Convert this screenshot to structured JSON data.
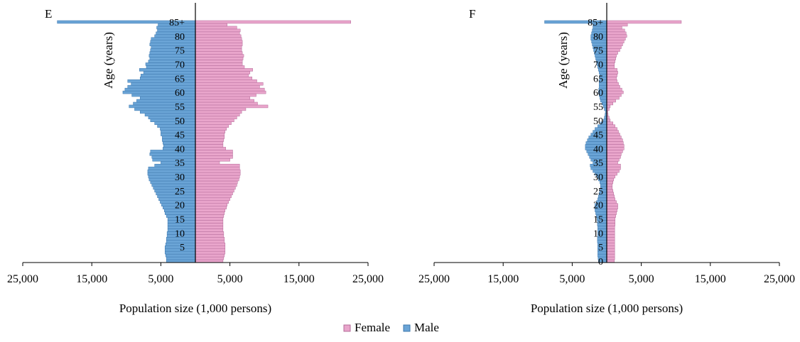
{
  "chart_data": [
    {
      "type": "bar",
      "orientation": "horizontal",
      "subtype": "population-pyramid",
      "panel_label": "E",
      "xlabel": "Population size (1,000 persons)",
      "ylabel": "Age (years)",
      "x_tick_labels": [
        "25,000",
        "15,000",
        "5,000",
        "5,000",
        "15,000",
        "25,000"
      ],
      "x_ticks": [
        -25000,
        -15000,
        -5000,
        5000,
        15000,
        25000
      ],
      "xlim": [
        -25000,
        25000
      ],
      "age_tick_labels": [
        "5",
        "10",
        "15",
        "20",
        "25",
        "30",
        "35",
        "40",
        "45",
        "50",
        "55",
        "60",
        "65",
        "70",
        "75",
        "80",
        "85+"
      ],
      "categories": [
        "0",
        "1",
        "2",
        "3",
        "4",
        "5",
        "6",
        "7",
        "8",
        "9",
        "10",
        "11",
        "12",
        "13",
        "14",
        "15",
        "16",
        "17",
        "18",
        "19",
        "20",
        "21",
        "22",
        "23",
        "24",
        "25",
        "26",
        "27",
        "28",
        "29",
        "30",
        "31",
        "32",
        "33",
        "34",
        "35",
        "36",
        "37",
        "38",
        "39",
        "40",
        "41",
        "42",
        "43",
        "44",
        "45",
        "46",
        "47",
        "48",
        "49",
        "50",
        "51",
        "52",
        "53",
        "54",
        "55",
        "56",
        "57",
        "58",
        "59",
        "60",
        "61",
        "62",
        "63",
        "64",
        "65",
        "66",
        "67",
        "68",
        "69",
        "70",
        "71",
        "72",
        "73",
        "74",
        "75",
        "76",
        "77",
        "78",
        "79",
        "80",
        "81",
        "82",
        "83",
        "84",
        "85+"
      ],
      "series": [
        {
          "name": "Female",
          "values": [
            4000,
            4100,
            4200,
            4300,
            4300,
            4300,
            4300,
            4200,
            4200,
            4100,
            4100,
            4000,
            4000,
            4000,
            4000,
            4000,
            4100,
            4200,
            4300,
            4500,
            4600,
            4800,
            5000,
            5200,
            5400,
            5600,
            5800,
            6000,
            6100,
            6300,
            6400,
            6500,
            6500,
            6400,
            6400,
            3500,
            5000,
            5400,
            5400,
            5400,
            4400,
            4000,
            4000,
            4100,
            4200,
            4200,
            4300,
            4500,
            4800,
            5200,
            5600,
            6000,
            6400,
            6700,
            7300,
            10500,
            9000,
            8500,
            7900,
            8800,
            10200,
            10000,
            9300,
            9800,
            8900,
            8200,
            7700,
            7900,
            8300,
            7100,
            6800,
            6800,
            6900,
            7000,
            6800,
            6700,
            6700,
            6800,
            6800,
            6700,
            6600,
            6400,
            6500,
            6000,
            4600,
            22500
          ],
          "color": "#e9a5cb"
        },
        {
          "name": "Male",
          "values": [
            4200,
            4200,
            4300,
            4400,
            4400,
            4400,
            4300,
            4200,
            4200,
            4100,
            4100,
            4000,
            4000,
            4000,
            4000,
            4000,
            4200,
            4400,
            4500,
            4700,
            4900,
            5100,
            5300,
            5500,
            5700,
            5900,
            6100,
            6300,
            6500,
            6700,
            6800,
            6900,
            6900,
            6800,
            5900,
            5000,
            6200,
            6300,
            6600,
            6500,
            4700,
            4600,
            4700,
            4800,
            4800,
            5000,
            5000,
            5100,
            5500,
            5900,
            6500,
            6800,
            7300,
            8000,
            8800,
            9600,
            9000,
            8500,
            8000,
            9200,
            10500,
            10200,
            9800,
            9300,
            9800,
            8000,
            7900,
            7500,
            8100,
            7100,
            7200,
            6800,
            6600,
            6700,
            6600,
            6500,
            6400,
            6600,
            6500,
            6400,
            5900,
            5700,
            5500,
            5600,
            5400,
            20000
          ],
          "color": "#6aa4d6"
        }
      ]
    },
    {
      "type": "bar",
      "orientation": "horizontal",
      "subtype": "population-pyramid",
      "panel_label": "F",
      "xlabel": "Population size (1,000 persons)",
      "ylabel": "Age (years)",
      "x_tick_labels": [
        "25,000",
        "15,000",
        "5,000",
        "5,000",
        "15,000",
        "25,000"
      ],
      "x_ticks": [
        -25000,
        -15000,
        -5000,
        5000,
        15000,
        25000
      ],
      "xlim": [
        -25000,
        25000
      ],
      "age_tick_labels": [
        "0",
        "5",
        "10",
        "15",
        "20",
        "25",
        "30",
        "35",
        "40",
        "45",
        "50",
        "55",
        "60",
        "65",
        "70",
        "75",
        "80",
        "85+"
      ],
      "categories": [
        "0",
        "1",
        "2",
        "3",
        "4",
        "5",
        "6",
        "7",
        "8",
        "9",
        "10",
        "11",
        "12",
        "13",
        "14",
        "15",
        "16",
        "17",
        "18",
        "19",
        "20",
        "21",
        "22",
        "23",
        "24",
        "25",
        "26",
        "27",
        "28",
        "29",
        "30",
        "31",
        "32",
        "33",
        "34",
        "35",
        "36",
        "37",
        "38",
        "39",
        "40",
        "41",
        "42",
        "43",
        "44",
        "45",
        "46",
        "47",
        "48",
        "49",
        "50",
        "51",
        "52",
        "53",
        "54",
        "55",
        "56",
        "57",
        "58",
        "59",
        "60",
        "61",
        "62",
        "63",
        "64",
        "65",
        "66",
        "67",
        "68",
        "69",
        "70",
        "71",
        "72",
        "73",
        "74",
        "75",
        "76",
        "77",
        "78",
        "79",
        "80",
        "81",
        "82",
        "83",
        "84",
        "85+"
      ],
      "series": [
        {
          "name": "Female",
          "values": [
            1100,
            1150,
            1150,
            1150,
            1150,
            1150,
            1150,
            1150,
            1150,
            1150,
            1150,
            1150,
            1150,
            1200,
            1200,
            1200,
            1300,
            1400,
            1500,
            1600,
            1600,
            1400,
            1200,
            1100,
            1000,
            900,
            800,
            800,
            900,
            1000,
            1200,
            1500,
            1800,
            2000,
            2000,
            1600,
            1800,
            2000,
            2100,
            2300,
            2500,
            2500,
            2400,
            2300,
            2100,
            1900,
            1700,
            1500,
            1200,
            900,
            500,
            350,
            200,
            150,
            350,
            500,
            900,
            1300,
            1800,
            2100,
            2400,
            2200,
            1900,
            1700,
            1500,
            1400,
            1500,
            1600,
            1500,
            1100,
            1100,
            1200,
            1300,
            1400,
            1600,
            1900,
            2100,
            2300,
            2500,
            2700,
            2900,
            2800,
            2600,
            2200,
            3000,
            10800
          ],
          "color": "#e9a5cb"
        },
        {
          "name": "Male",
          "values": [
            1200,
            1250,
            1300,
            1300,
            1300,
            1300,
            1300,
            1350,
            1350,
            1300,
            1300,
            1300,
            1300,
            1350,
            1350,
            1400,
            1500,
            1600,
            1700,
            1700,
            1700,
            1500,
            1300,
            1200,
            1100,
            1000,
            900,
            900,
            1000,
            1200,
            1400,
            1700,
            2000,
            2300,
            2400,
            2000,
            2300,
            2500,
            2700,
            2900,
            3100,
            3100,
            3000,
            2800,
            2600,
            2300,
            2000,
            1700,
            1300,
            900,
            500,
            350,
            250,
            200,
            350,
            500,
            700,
            900,
            1000,
            1100,
            1200,
            1150,
            1100,
            1100,
            1100,
            1000,
            1000,
            1100,
            1200,
            1300,
            1400,
            1500,
            1600,
            1700,
            1800,
            1900,
            2000,
            2100,
            2200,
            2300,
            2300,
            2200,
            2100,
            2000,
            2000,
            9000
          ],
          "color": "#6aa4d6"
        }
      ]
    }
  ],
  "legend": {
    "items": [
      {
        "label": "Female",
        "color": "#e9a5cb",
        "edge": "#b46c9a"
      },
      {
        "label": "Male",
        "color": "#6aa4d6",
        "edge": "#3e78ae"
      }
    ],
    "placement": "bottom-center"
  }
}
